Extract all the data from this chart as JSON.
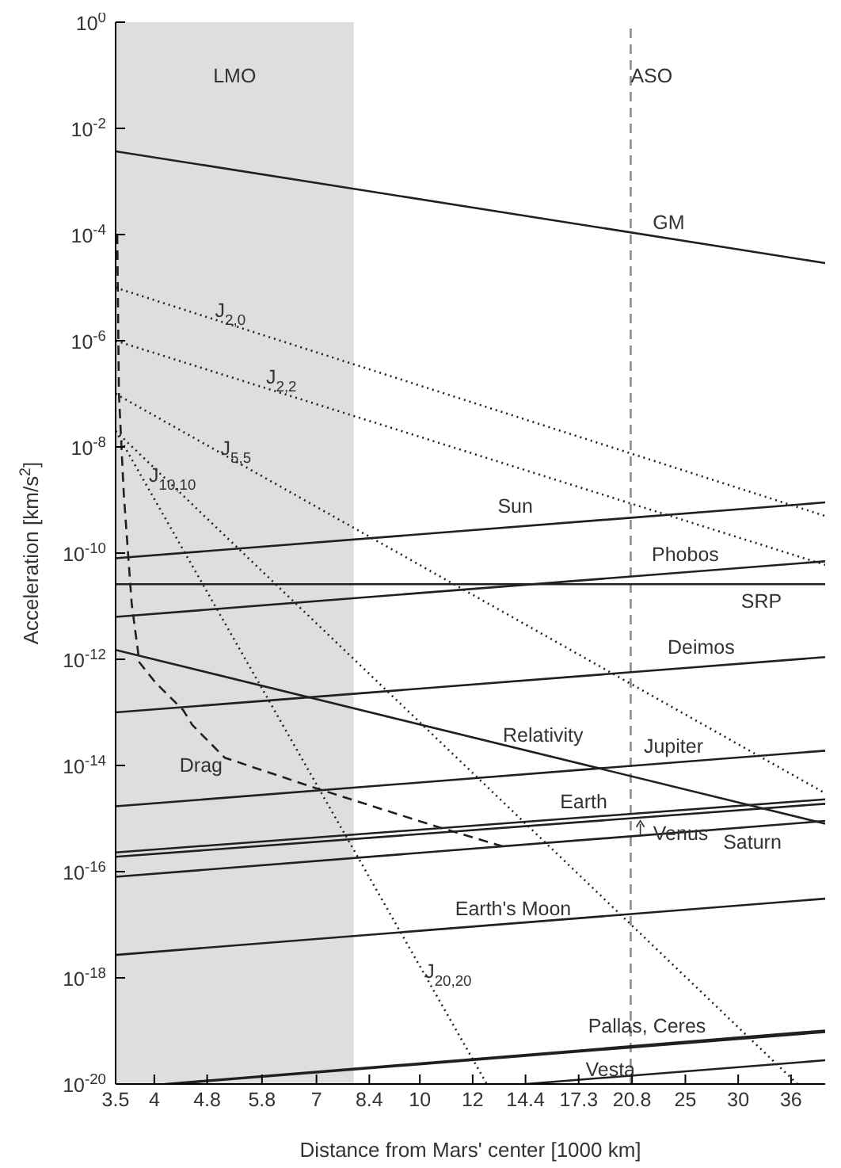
{
  "chart_data": {
    "type": "line",
    "xlabel": "Distance from Mars' center [1000 km]",
    "ylabel": "Acceleration [km/s$^{2}$]",
    "log": "xy",
    "marker": "none",
    "xlim": [
      3.5,
      40.5
    ],
    "xticks": [
      3.5,
      4,
      4.8,
      5.8,
      7,
      8.4,
      10,
      12,
      14.4,
      17.3,
      20.8,
      25,
      30,
      36
    ],
    "ylim": [
      1e-20,
      1
    ],
    "yticks": [
      {
        "value": 1,
        "label": "10$^{0}$"
      },
      {
        "value": 0.01,
        "label": "10$^{-2}$"
      },
      {
        "value": 0.0001,
        "label": "10$^{-4}$"
      },
      {
        "value": 1e-06,
        "label": "10$^{-6}$"
      },
      {
        "value": 1e-08,
        "label": "10$^{-8}$"
      },
      {
        "value": 1e-10,
        "label": "10$^{-10}$"
      },
      {
        "value": 1e-12,
        "label": "10$^{-12}$"
      },
      {
        "value": 1e-14,
        "label": "10$^{-14}$"
      },
      {
        "value": 1e-16,
        "label": "10$^{-16}$"
      },
      {
        "value": 1e-18,
        "label": "10$^{-18}$"
      },
      {
        "value": 1e-20,
        "label": "10$^{-20}$"
      }
    ],
    "bands": [
      {
        "axis": "x",
        "from": 3.5,
        "to": 7.96,
        "label": "LMO",
        "color": "#dddee0"
      }
    ],
    "ref_lines": [
      {
        "axis": "x",
        "value": 20.7,
        "label": "ASO",
        "color": "#8c8c8c",
        "line_style": "dashed"
      }
    ],
    "series": [
      {
        "name": "GM",
        "color": "#231f20",
        "line_style": "solid",
        "x": [
          3.5,
          40.5
        ],
        "values": [
          0.0037,
          2.9e-05
        ]
      },
      {
        "name": "J$_{2,0}$",
        "color": "#231f20",
        "line_style": "dotted",
        "x": [
          3.5,
          40.5
        ],
        "values": [
          1e-05,
          5e-10
        ]
      },
      {
        "name": "J$_{2,2}$",
        "color": "#231f20",
        "line_style": "dotted",
        "x": [
          3.5,
          40.5
        ],
        "values": [
          1e-06,
          6e-11
        ]
      },
      {
        "name": "J$_{5,5}$",
        "color": "#231f20",
        "line_style": "dotted",
        "x": [
          3.5,
          40.5
        ],
        "values": [
          1e-07,
          3e-15
        ]
      },
      {
        "name": "J$_{10,10}$",
        "color": "#231f20",
        "line_style": "dotted",
        "x": [
          3.5,
          36.8
        ],
        "values": [
          2e-08,
          1e-20
        ]
      },
      {
        "name": "J$_{20,20}$",
        "color": "#231f20",
        "line_style": "dotted",
        "x": [
          3.5,
          12.6
        ],
        "values": [
          2e-08,
          1e-20
        ]
      },
      {
        "name": "Sun",
        "color": "#231f20",
        "line_style": "solid",
        "x": [
          3.5,
          40.5
        ],
        "values": [
          8e-11,
          9e-10
        ]
      },
      {
        "name": "Phobos",
        "color": "#231f20",
        "line_style": "solid",
        "x": [
          3.5,
          40.5
        ],
        "values": [
          6.3e-12,
          7e-11
        ]
      },
      {
        "name": "SRP",
        "color": "#231f20",
        "line_style": "solid",
        "x": [
          3.5,
          40.5
        ],
        "values": [
          2.6e-11,
          2.6e-11
        ]
      },
      {
        "name": "Deimos",
        "color": "#231f20",
        "line_style": "solid",
        "x": [
          3.5,
          40.5
        ],
        "values": [
          1e-13,
          1.1e-12
        ]
      },
      {
        "name": "Relativity",
        "color": "#231f20",
        "line_style": "solid",
        "x": [
          3.5,
          40.5
        ],
        "values": [
          1.5e-12,
          8e-16
        ]
      },
      {
        "name": "Drag",
        "color": "#231f20",
        "line_style": "dashed",
        "x": [
          3.52,
          3.54,
          3.6,
          3.7,
          3.8,
          4.02,
          4.42,
          4.56,
          5.1,
          7,
          10.7,
          13.3
        ],
        "values": [
          0.0001,
          1e-07,
          1.3e-09,
          1.1e-11,
          8.7e-13,
          3.6e-13,
          1.1e-13,
          5.8e-14,
          1.4e-14,
          3.7e-15,
          6.8e-16,
          3e-16
        ]
      },
      {
        "name": "Jupiter",
        "color": "#231f20",
        "line_style": "solid",
        "x": [
          3.5,
          40.5
        ],
        "values": [
          1.7e-15,
          1.9e-14
        ]
      },
      {
        "name": "Earth",
        "color": "#231f20",
        "line_style": "solid",
        "x": [
          3.5,
          40.5
        ],
        "values": [
          2.3e-16,
          2.3e-15
        ]
      },
      {
        "name": "Venus",
        "color": "#231f20",
        "line_style": "solid",
        "x": [
          3.5,
          40.5
        ],
        "values": [
          1.9e-16,
          1.9e-15
        ]
      },
      {
        "name": "Saturn",
        "color": "#231f20",
        "line_style": "solid",
        "x": [
          3.5,
          40.5
        ],
        "values": [
          8e-17,
          9e-16
        ]
      },
      {
        "name": "Earth's Moon",
        "color": "#231f20",
        "line_style": "solid",
        "x": [
          3.5,
          40.5
        ],
        "values": [
          2.7e-18,
          3.1e-17
        ]
      },
      {
        "name": "Pallas, Ceres",
        "color": "#231f20",
        "line_style": "solid",
        "x": [
          4.15,
          40.5
        ],
        "values": [
          1e-20,
          1.02e-19
        ]
      },
      {
        "color": "#231f20",
        "line_style": "solid",
        "x": [
          4.25,
          40.5
        ],
        "values": [
          1e-20,
          9.5e-20
        ]
      },
      {
        "name": "Vesta",
        "color": "#231f20",
        "line_style": "solid",
        "x": [
          14.4,
          40.5
        ],
        "values": [
          1e-20,
          2.8e-20
        ]
      }
    ]
  }
}
